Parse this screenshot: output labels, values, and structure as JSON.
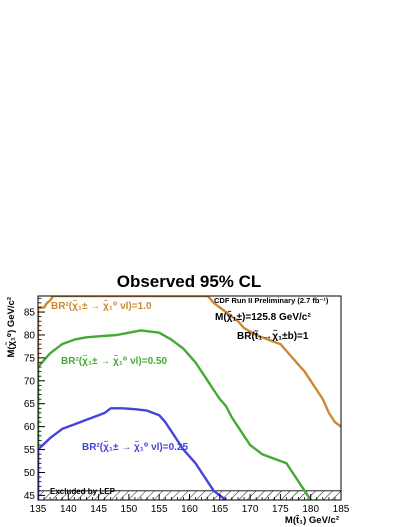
{
  "chart_data": {
    "type": "line",
    "title": "Observed 95% CL",
    "xlabel": "M(t̃₁) GeV/c²",
    "ylabel": "M(χ̃₁⁰) GeV/c²",
    "xlim": [
      135,
      185
    ],
    "ylim": [
      44,
      88.5
    ],
    "x_ticks": [
      135,
      140,
      145,
      150,
      155,
      160,
      165,
      170,
      175,
      180,
      185
    ],
    "y_ticks": [
      45,
      50,
      55,
      60,
      65,
      70,
      75,
      80,
      85
    ],
    "grid": false,
    "series": [
      {
        "name": "BR²(χ̃₁± → χ̃₁⁰ νl)=1.0",
        "color": "#cc8833",
        "points": [
          [
            135,
            44
          ],
          [
            135,
            86
          ],
          [
            136,
            86
          ],
          [
            136.5,
            87
          ],
          [
            137,
            87.5
          ],
          [
            137.5,
            88.5
          ],
          [
            163,
            88.5
          ],
          [
            164,
            87
          ],
          [
            165,
            86
          ],
          [
            166,
            85
          ],
          [
            167,
            84
          ],
          [
            168,
            83
          ],
          [
            169,
            81.5
          ],
          [
            171,
            80
          ],
          [
            173,
            79
          ],
          [
            175,
            78
          ],
          [
            176,
            76.5
          ],
          [
            177,
            75
          ],
          [
            178,
            73.5
          ],
          [
            179,
            72
          ],
          [
            180,
            70
          ],
          [
            181,
            68
          ],
          [
            182,
            66
          ],
          [
            183,
            63
          ],
          [
            184,
            61
          ],
          [
            185,
            60
          ]
        ]
      },
      {
        "name": "BR²(χ̃₁± → χ̃₁⁰ νl)=0.50",
        "color": "#44aa33",
        "points": [
          [
            135,
            44
          ],
          [
            135,
            73
          ],
          [
            137,
            76
          ],
          [
            139,
            78
          ],
          [
            141,
            79
          ],
          [
            143,
            79.5
          ],
          [
            145,
            79.7
          ],
          [
            148,
            80
          ],
          [
            150,
            80.5
          ],
          [
            152,
            81
          ],
          [
            155,
            80.5
          ],
          [
            157,
            79
          ],
          [
            159,
            77
          ],
          [
            160,
            75.5
          ],
          [
            161,
            74
          ],
          [
            162,
            72
          ],
          [
            163,
            70
          ],
          [
            164,
            68
          ],
          [
            165,
            66
          ],
          [
            166,
            64.5
          ],
          [
            167,
            62
          ],
          [
            168,
            60
          ],
          [
            169,
            58
          ],
          [
            170,
            56
          ],
          [
            172,
            54
          ],
          [
            174,
            53
          ],
          [
            176,
            52
          ],
          [
            177,
            50
          ],
          [
            178,
            48
          ],
          [
            179,
            46
          ],
          [
            180,
            44
          ]
        ]
      },
      {
        "name": "BR²(χ̃₁± → χ̃₁⁰ νl)=0.25",
        "color": "#4444dd",
        "points": [
          [
            135,
            44
          ],
          [
            135,
            55
          ],
          [
            137,
            57.5
          ],
          [
            139,
            59.5
          ],
          [
            141,
            60.5
          ],
          [
            143,
            61.5
          ],
          [
            145,
            62.5
          ],
          [
            146,
            63
          ],
          [
            147,
            64
          ],
          [
            149,
            64
          ],
          [
            151,
            63.8
          ],
          [
            153,
            63.5
          ],
          [
            155,
            62.5
          ],
          [
            156,
            61
          ],
          [
            157,
            59
          ],
          [
            158,
            57
          ],
          [
            159,
            55
          ],
          [
            160,
            53.5
          ],
          [
            161,
            52
          ],
          [
            162,
            50
          ],
          [
            163,
            48
          ],
          [
            164,
            46
          ],
          [
            165,
            45
          ],
          [
            166,
            44
          ]
        ]
      }
    ],
    "excluded_region": {
      "label": "Excluded by LEP",
      "y_max": 46
    },
    "annotations": [
      {
        "text": "CDF Run II Preliminary (2.7 fb⁻¹)",
        "x": 171.5,
        "y": 86.5
      },
      {
        "text": "M(χ̃₁±)=125.8 GeV/c²",
        "x": 172,
        "y": 84
      },
      {
        "text": "BR(t̃₁→χ̃₁±b)=1",
        "x": 175.5,
        "y": 79.5
      }
    ]
  },
  "colors": {
    "frame": "#000000",
    "hatch": "#000000",
    "background": "#ffffff"
  }
}
